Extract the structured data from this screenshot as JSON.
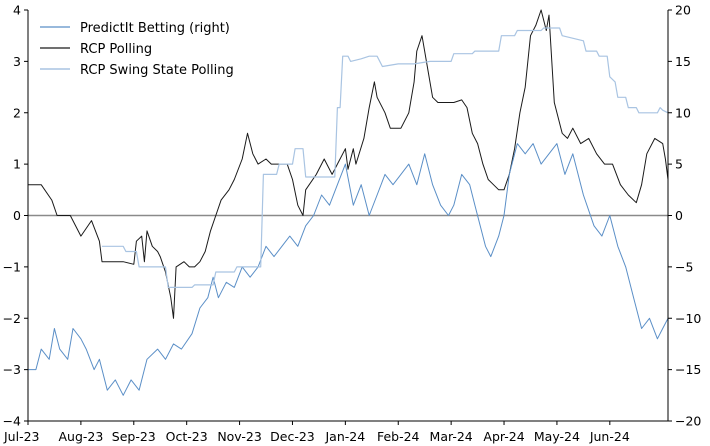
{
  "chart_data": {
    "type": "line",
    "title": "",
    "xlabel": "",
    "ylabel_left": "",
    "ylabel_right": "",
    "x_tick_labels": [
      "Jul-23",
      "Aug-23",
      "Sep-23",
      "Oct-23",
      "Nov-23",
      "Dec-23",
      "Jan-24",
      "Feb-24",
      "Mar-24",
      "Apr-24",
      "May-24",
      "Jun-24"
    ],
    "xlim_months": [
      0,
      12.1
    ],
    "ylim_left": [
      -4,
      4
    ],
    "yticks_left": [
      "4",
      "3",
      "2",
      "1",
      "0",
      "−1",
      "−2",
      "−3",
      "−4"
    ],
    "ylim_right": [
      -20,
      20
    ],
    "yticks_right": [
      "20",
      "15",
      "10",
      "5",
      "0",
      "−5",
      "−10",
      "−15",
      "−20"
    ],
    "zero_line": true,
    "grid": false,
    "legend_position": "top-left",
    "legend": [
      {
        "label": "PredictIt Betting (right)",
        "color": "#5b8fc7",
        "width": 1.0
      },
      {
        "label": "RCP Polling",
        "color": "#1a1a1a",
        "width": 1.0
      },
      {
        "label": "RCP Swing State Polling",
        "color": "#a9c4e2",
        "width": 1.2
      }
    ],
    "series": [
      {
        "name": "RCP Polling",
        "axis": "left",
        "color": "#1a1a1a",
        "points": [
          [
            0,
            0.6
          ],
          [
            0.25,
            0.6
          ],
          [
            0.45,
            0.3
          ],
          [
            0.55,
            0
          ],
          [
            0.8,
            0
          ],
          [
            1.0,
            -0.4
          ],
          [
            1.2,
            -0.1
          ],
          [
            1.35,
            -0.5
          ],
          [
            1.4,
            -0.9
          ],
          [
            1.8,
            -0.9
          ],
          [
            2.0,
            -0.95
          ],
          [
            2.05,
            -0.5
          ],
          [
            2.15,
            -0.4
          ],
          [
            2.2,
            -0.9
          ],
          [
            2.25,
            -0.3
          ],
          [
            2.35,
            -0.6
          ],
          [
            2.45,
            -0.7
          ],
          [
            2.5,
            -0.8
          ],
          [
            2.6,
            -1.1
          ],
          [
            2.7,
            -1.6
          ],
          [
            2.75,
            -2.0
          ],
          [
            2.8,
            -1.0
          ],
          [
            2.95,
            -0.9
          ],
          [
            3.05,
            -1.0
          ],
          [
            3.15,
            -1.0
          ],
          [
            3.25,
            -0.9
          ],
          [
            3.35,
            -0.7
          ],
          [
            3.45,
            -0.3
          ],
          [
            3.55,
            0
          ],
          [
            3.65,
            0.3
          ],
          [
            3.8,
            0.5
          ],
          [
            3.9,
            0.7
          ],
          [
            4.05,
            1.1
          ],
          [
            4.15,
            1.6
          ],
          [
            4.25,
            1.2
          ],
          [
            4.35,
            1.0
          ],
          [
            4.5,
            1.1
          ],
          [
            4.6,
            1.0
          ],
          [
            4.75,
            1.0
          ],
          [
            4.9,
            1.0
          ],
          [
            5.0,
            0.7
          ],
          [
            5.1,
            0.2
          ],
          [
            5.2,
            0
          ],
          [
            5.25,
            0.5
          ],
          [
            5.45,
            0.8
          ],
          [
            5.6,
            1.1
          ],
          [
            5.75,
            0.8
          ],
          [
            5.85,
            1.0
          ],
          [
            6.0,
            1.3
          ],
          [
            6.05,
            0.9
          ],
          [
            6.15,
            1.3
          ],
          [
            6.2,
            1.0
          ],
          [
            6.35,
            1.5
          ],
          [
            6.45,
            2.1
          ],
          [
            6.55,
            2.6
          ],
          [
            6.6,
            2.3
          ],
          [
            6.75,
            2.0
          ],
          [
            6.85,
            1.7
          ],
          [
            7.05,
            1.7
          ],
          [
            7.2,
            2.0
          ],
          [
            7.3,
            2.6
          ],
          [
            7.35,
            3.2
          ],
          [
            7.45,
            3.5
          ],
          [
            7.55,
            2.9
          ],
          [
            7.65,
            2.3
          ],
          [
            7.75,
            2.2
          ],
          [
            7.85,
            2.2
          ],
          [
            8.05,
            2.2
          ],
          [
            8.2,
            2.25
          ],
          [
            8.3,
            2.1
          ],
          [
            8.4,
            1.6
          ],
          [
            8.5,
            1.4
          ],
          [
            8.6,
            1.0
          ],
          [
            8.7,
            0.7
          ],
          [
            8.8,
            0.6
          ],
          [
            8.9,
            0.5
          ],
          [
            9.0,
            0.5
          ],
          [
            9.1,
            0.8
          ],
          [
            9.2,
            1.3
          ],
          [
            9.3,
            2.0
          ],
          [
            9.4,
            2.5
          ],
          [
            9.5,
            3.5
          ],
          [
            9.6,
            3.7
          ],
          [
            9.7,
            4.0
          ],
          [
            9.8,
            3.6
          ],
          [
            9.85,
            3.9
          ],
          [
            9.95,
            2.2
          ],
          [
            10.1,
            1.6
          ],
          [
            10.2,
            1.5
          ],
          [
            10.3,
            1.7
          ],
          [
            10.45,
            1.4
          ],
          [
            10.6,
            1.5
          ],
          [
            10.75,
            1.2
          ],
          [
            10.9,
            1.0
          ],
          [
            11.05,
            1.0
          ],
          [
            11.2,
            0.6
          ],
          [
            11.35,
            0.4
          ],
          [
            11.5,
            0.25
          ],
          [
            11.6,
            0.6
          ],
          [
            11.7,
            1.2
          ],
          [
            11.85,
            1.5
          ],
          [
            12.0,
            1.4
          ],
          [
            12.05,
            1.1
          ],
          [
            12.1,
            0.7
          ]
        ]
      },
      {
        "name": "PredictIt Betting (right)",
        "axis": "right",
        "color": "#5b8fc7",
        "points": [
          [
            0,
            -15
          ],
          [
            0.15,
            -15
          ],
          [
            0.25,
            -13
          ],
          [
            0.4,
            -14
          ],
          [
            0.5,
            -11
          ],
          [
            0.6,
            -13
          ],
          [
            0.75,
            -14
          ],
          [
            0.85,
            -11
          ],
          [
            1.0,
            -12
          ],
          [
            1.1,
            -13
          ],
          [
            1.25,
            -15
          ],
          [
            1.35,
            -14
          ],
          [
            1.5,
            -17
          ],
          [
            1.65,
            -16
          ],
          [
            1.8,
            -17.5
          ],
          [
            1.95,
            -16
          ],
          [
            2.1,
            -17
          ],
          [
            2.25,
            -14
          ],
          [
            2.45,
            -13
          ],
          [
            2.6,
            -14
          ],
          [
            2.75,
            -12.5
          ],
          [
            2.9,
            -13
          ],
          [
            3.1,
            -11.5
          ],
          [
            3.25,
            -9
          ],
          [
            3.4,
            -8
          ],
          [
            3.5,
            -6
          ],
          [
            3.6,
            -8
          ],
          [
            3.75,
            -6.5
          ],
          [
            3.9,
            -7
          ],
          [
            4.05,
            -5
          ],
          [
            4.2,
            -6
          ],
          [
            4.35,
            -5
          ],
          [
            4.5,
            -3
          ],
          [
            4.65,
            -4
          ],
          [
            4.8,
            -3
          ],
          [
            4.95,
            -2
          ],
          [
            5.1,
            -3
          ],
          [
            5.25,
            -1
          ],
          [
            5.4,
            0
          ],
          [
            5.55,
            2
          ],
          [
            5.7,
            1
          ],
          [
            5.85,
            3
          ],
          [
            6.0,
            5
          ],
          [
            6.15,
            1
          ],
          [
            6.3,
            3
          ],
          [
            6.45,
            0
          ],
          [
            6.6,
            2
          ],
          [
            6.75,
            4
          ],
          [
            6.9,
            3
          ],
          [
            7.05,
            4
          ],
          [
            7.2,
            5
          ],
          [
            7.35,
            3
          ],
          [
            7.5,
            6
          ],
          [
            7.65,
            3
          ],
          [
            7.8,
            1
          ],
          [
            7.95,
            0
          ],
          [
            8.05,
            1
          ],
          [
            8.2,
            4
          ],
          [
            8.35,
            3
          ],
          [
            8.45,
            1
          ],
          [
            8.55,
            -1
          ],
          [
            8.65,
            -3
          ],
          [
            8.75,
            -4
          ],
          [
            8.9,
            -2
          ],
          [
            9.0,
            0
          ],
          [
            9.1,
            4
          ],
          [
            9.25,
            7
          ],
          [
            9.4,
            6
          ],
          [
            9.55,
            7
          ],
          [
            9.7,
            5
          ],
          [
            9.85,
            6
          ],
          [
            10.0,
            7
          ],
          [
            10.15,
            4
          ],
          [
            10.3,
            6
          ],
          [
            10.5,
            2
          ],
          [
            10.7,
            -1
          ],
          [
            10.85,
            -2
          ],
          [
            11.0,
            0
          ],
          [
            11.15,
            -3
          ],
          [
            11.3,
            -5
          ],
          [
            11.45,
            -8
          ],
          [
            11.6,
            -11
          ],
          [
            11.75,
            -10
          ],
          [
            11.9,
            -12
          ],
          [
            12.0,
            -11
          ],
          [
            12.1,
            -10
          ]
        ]
      },
      {
        "name": "RCP Swing State Polling",
        "axis": "left",
        "color": "#a9c4e2",
        "points": [
          [
            1.4,
            -0.6
          ],
          [
            1.8,
            -0.6
          ],
          [
            1.85,
            -0.7
          ],
          [
            2.05,
            -0.7
          ],
          [
            2.1,
            -1.0
          ],
          [
            2.6,
            -1.0
          ],
          [
            2.65,
            -1.4
          ],
          [
            3.1,
            -1.4
          ],
          [
            3.15,
            -1.35
          ],
          [
            3.5,
            -1.35
          ],
          [
            3.55,
            -1.1
          ],
          [
            3.9,
            -1.1
          ],
          [
            3.95,
            -1.0
          ],
          [
            4.4,
            -1.0
          ],
          [
            4.45,
            0.8
          ],
          [
            4.7,
            0.8
          ],
          [
            4.75,
            1.0
          ],
          [
            5.0,
            1.0
          ],
          [
            5.05,
            1.3
          ],
          [
            5.2,
            1.3
          ],
          [
            5.25,
            0.75
          ],
          [
            5.8,
            0.75
          ],
          [
            5.85,
            2.1
          ],
          [
            5.9,
            2.1
          ],
          [
            5.95,
            3.1
          ],
          [
            6.05,
            3.1
          ],
          [
            6.1,
            3.0
          ],
          [
            6.3,
            3.05
          ],
          [
            6.45,
            3.1
          ],
          [
            6.6,
            3.1
          ],
          [
            6.7,
            2.9
          ],
          [
            7.0,
            2.95
          ],
          [
            7.3,
            2.95
          ],
          [
            7.6,
            3.0
          ],
          [
            8.0,
            3.0
          ],
          [
            8.05,
            3.15
          ],
          [
            8.4,
            3.15
          ],
          [
            8.45,
            3.2
          ],
          [
            8.9,
            3.2
          ],
          [
            8.95,
            3.5
          ],
          [
            9.2,
            3.5
          ],
          [
            9.25,
            3.6
          ],
          [
            9.7,
            3.6
          ],
          [
            9.75,
            3.65
          ],
          [
            10.05,
            3.65
          ],
          [
            10.1,
            3.5
          ],
          [
            10.5,
            3.4
          ],
          [
            10.55,
            3.2
          ],
          [
            10.75,
            3.2
          ],
          [
            10.8,
            3.1
          ],
          [
            10.95,
            3.1
          ],
          [
            11.0,
            2.7
          ],
          [
            11.1,
            2.6
          ],
          [
            11.15,
            2.3
          ],
          [
            11.3,
            2.3
          ],
          [
            11.35,
            2.1
          ],
          [
            11.5,
            2.1
          ],
          [
            11.55,
            2.0
          ],
          [
            11.9,
            2.0
          ],
          [
            11.95,
            2.1
          ],
          [
            12.0,
            2.05
          ],
          [
            12.1,
            2.0
          ]
        ]
      }
    ]
  }
}
